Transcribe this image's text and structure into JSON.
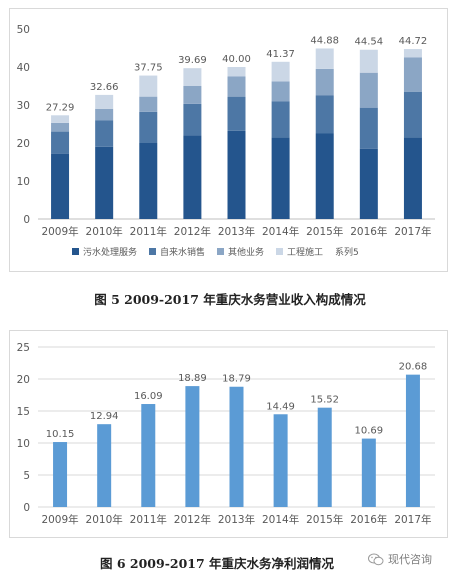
{
  "colors": {
    "sewage": "#24558d",
    "water_sales": "#4d77a5",
    "other": "#8ba6c5",
    "engineering": "#cbd7e6",
    "bar2": "#5b9bd5",
    "axis_text": "#595959",
    "grid": "#d9d9d9"
  },
  "chart_data": [
    {
      "type": "bar",
      "stacked": true,
      "categories": [
        "2009年",
        "2010年",
        "2011年",
        "2012年",
        "2013年",
        "2014年",
        "2015年",
        "2016年",
        "2017年"
      ],
      "series": [
        {
          "name": "污水处理服务",
          "color_key": "sewage",
          "values": [
            17.2,
            19.0,
            20.0,
            22.0,
            23.2,
            21.5,
            22.5,
            18.5,
            21.5
          ]
        },
        {
          "name": "自来水销售",
          "color_key": "water_sales",
          "values": [
            5.8,
            7.0,
            8.2,
            8.3,
            9.0,
            9.5,
            10.0,
            10.8,
            12.0
          ]
        },
        {
          "name": "其他业务",
          "color_key": "other",
          "values": [
            2.3,
            3.0,
            4.0,
            4.7,
            5.3,
            5.2,
            7.0,
            9.2,
            9.0
          ]
        },
        {
          "name": "工程施工",
          "color_key": "engineering",
          "values": [
            1.99,
            3.66,
            5.55,
            4.69,
            2.5,
            5.17,
            5.38,
            6.04,
            2.22
          ]
        }
      ],
      "legend_extra": "系列5",
      "totals": [
        "27.29",
        "32.66",
        "37.75",
        "39.69",
        "40.00",
        "41.37",
        "44.88",
        "44.54",
        "44.72"
      ],
      "yticks": [
        "0",
        "10",
        "20",
        "30",
        "40",
        "50"
      ],
      "ylim": [
        0,
        50
      ],
      "grid": false,
      "legend_position": "bottom",
      "title": "图 5 2009-2017 年重庆水务营业收入构成情况"
    },
    {
      "type": "bar",
      "categories": [
        "2009年",
        "2010年",
        "2011年",
        "2012年",
        "2013年",
        "2014年",
        "2015年",
        "2016年",
        "2017年"
      ],
      "values": [
        10.15,
        12.94,
        16.09,
        18.89,
        18.79,
        14.49,
        15.52,
        10.69,
        20.68
      ],
      "value_labels": [
        "10.15",
        "12.94",
        "16.09",
        "18.89",
        "18.79",
        "14.49",
        "15.52",
        "10.69",
        "20.68"
      ],
      "yticks": [
        "0",
        "5",
        "10",
        "15",
        "20",
        "25"
      ],
      "ylim": [
        0,
        25
      ],
      "grid": true,
      "title": "图 6 2009-2017 年重庆水务净利润情况"
    }
  ],
  "watermark": {
    "text": "现代咨询",
    "icon": "wechat-icon"
  }
}
